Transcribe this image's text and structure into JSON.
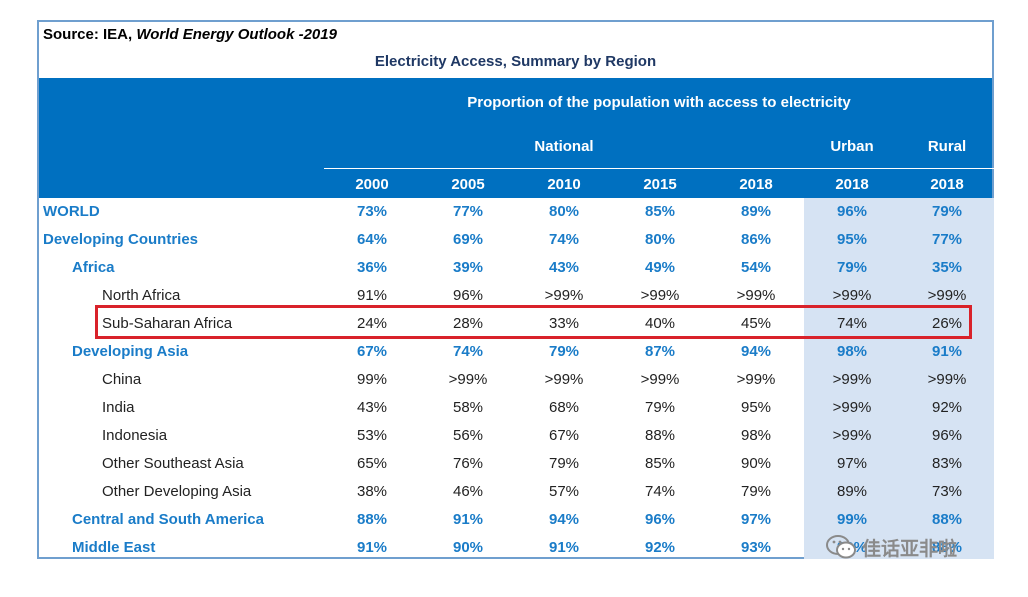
{
  "source": {
    "prefix": "Source: IEA, ",
    "publication": "World Energy Outlook -2019"
  },
  "title": "Electricity Access, Summary by Region",
  "header": {
    "group_title": "Proportion of the population with access to electricity",
    "national": "National",
    "urban": "Urban",
    "rural": "Rural",
    "years": [
      "2000",
      "2005",
      "2010",
      "2015",
      "2018",
      "2018",
      "2018"
    ]
  },
  "rows": [
    {
      "label": "WORLD",
      "level": 0,
      "bold": true,
      "values": [
        "73%",
        "77%",
        "80%",
        "85%",
        "89%",
        "96%",
        "79%"
      ]
    },
    {
      "label": "Developing Countries",
      "level": 0,
      "bold": true,
      "values": [
        "64%",
        "69%",
        "74%",
        "80%",
        "86%",
        "95%",
        "77%"
      ]
    },
    {
      "label": "Africa",
      "level": 1,
      "bold": true,
      "values": [
        "36%",
        "39%",
        "43%",
        "49%",
        "54%",
        "79%",
        "35%"
      ]
    },
    {
      "label": "North Africa",
      "level": 2,
      "bold": false,
      "values": [
        "91%",
        "96%",
        ">99%",
        ">99%",
        ">99%",
        ">99%",
        ">99%"
      ]
    },
    {
      "label": "Sub-Saharan Africa",
      "level": 2,
      "bold": false,
      "values": [
        "24%",
        "28%",
        "33%",
        "40%",
        "45%",
        "74%",
        "26%"
      ]
    },
    {
      "label": "Developing Asia",
      "level": 1,
      "bold": true,
      "values": [
        "67%",
        "74%",
        "79%",
        "87%",
        "94%",
        "98%",
        "91%"
      ]
    },
    {
      "label": "China",
      "level": 2,
      "bold": false,
      "values": [
        "99%",
        ">99%",
        ">99%",
        ">99%",
        ">99%",
        ">99%",
        ">99%"
      ]
    },
    {
      "label": "India",
      "level": 2,
      "bold": false,
      "values": [
        "43%",
        "58%",
        "68%",
        "79%",
        "95%",
        ">99%",
        "92%"
      ]
    },
    {
      "label": "Indonesia",
      "level": 2,
      "bold": false,
      "values": [
        "53%",
        "56%",
        "67%",
        "88%",
        "98%",
        ">99%",
        "96%"
      ]
    },
    {
      "label": "Other Southeast Asia",
      "level": 2,
      "bold": false,
      "values": [
        "65%",
        "76%",
        "79%",
        "85%",
        "90%",
        "97%",
        "83%"
      ]
    },
    {
      "label": "Other Developing Asia",
      "level": 2,
      "bold": false,
      "values": [
        "38%",
        "46%",
        "57%",
        "74%",
        "79%",
        "89%",
        "73%"
      ]
    },
    {
      "label": "Central and South America",
      "level": 1,
      "bold": true,
      "values": [
        "88%",
        "91%",
        "94%",
        "96%",
        "97%",
        "99%",
        "88%"
      ]
    },
    {
      "label": "Middle East",
      "level": 1,
      "bold": true,
      "values": [
        "91%",
        "90%",
        "91%",
        "92%",
        "93%",
        "99%",
        "88%"
      ]
    }
  ],
  "highlighted_row": "Sub-Saharan Africa",
  "watermark": "佳话亚非啦",
  "colors": {
    "header_blue": "#0070c0",
    "bold_text_blue": "#1a7cc8",
    "shade": "#d6e3f3",
    "highlight_red": "#d9222a"
  }
}
